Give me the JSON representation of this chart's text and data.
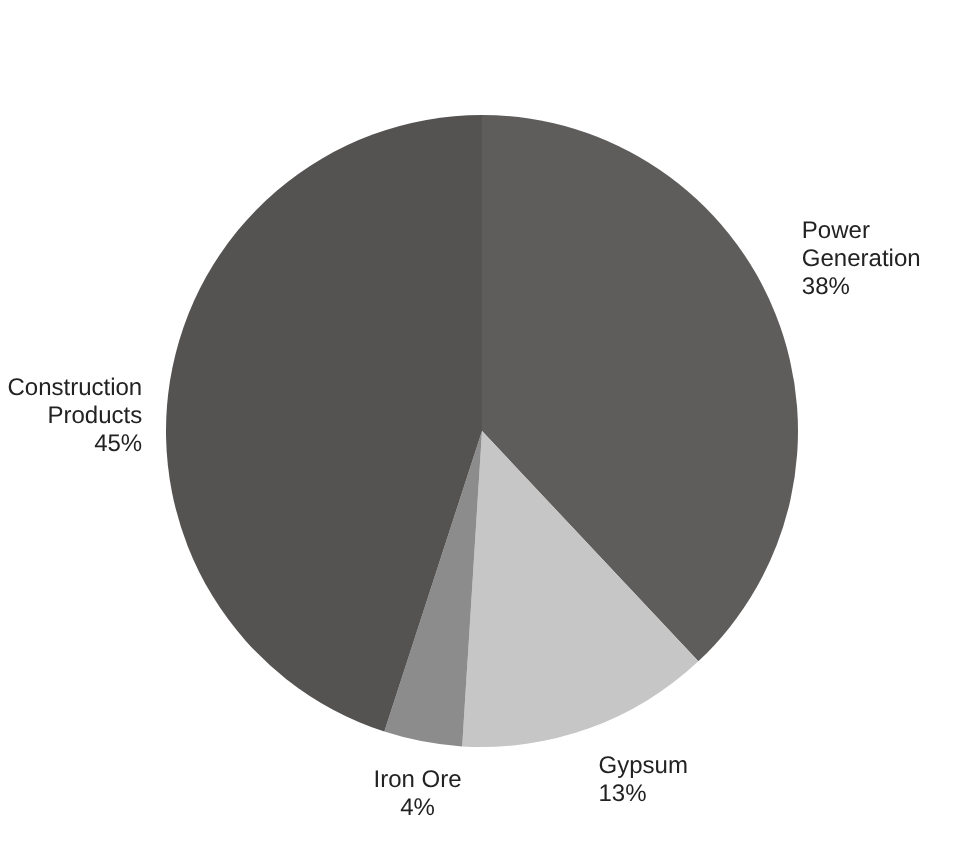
{
  "chart_data": {
    "type": "pie",
    "categories": [
      "Power Generation",
      "Gypsum",
      "Iron Ore",
      "Construction Products"
    ],
    "values": [
      38,
      13,
      4,
      45
    ],
    "value_labels": [
      "38%",
      "13%",
      "4%",
      "45%"
    ],
    "colors": [
      "#5f5c5c",
      "#c6c6c6",
      "#8c8c8c",
      "#555252"
    ]
  }
}
